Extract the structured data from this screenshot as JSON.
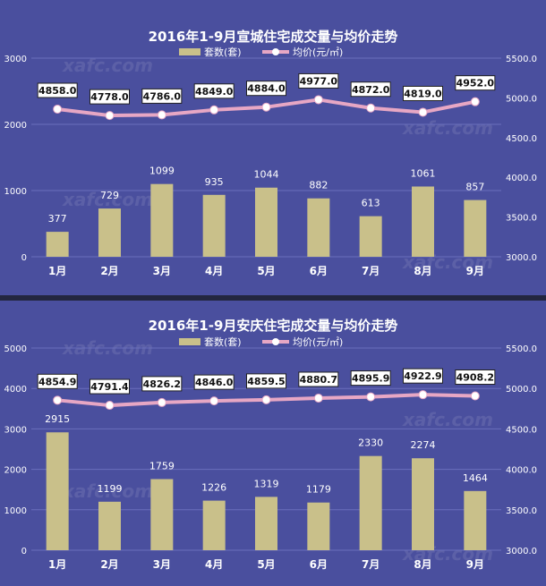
{
  "watermark": "xafc.com",
  "colors": {
    "background": "#4a4f9e",
    "bar": "#c9c08a",
    "line": "#e7a7c4",
    "marker": "#ffffff"
  },
  "chart_data": [
    {
      "type": "bar",
      "title": "2016年1-9月宣城住宅成交量与均价走势",
      "categories": [
        "1月",
        "2月",
        "3月",
        "4月",
        "5月",
        "6月",
        "7月",
        "8月",
        "9月"
      ],
      "series": [
        {
          "name": "套数(套)",
          "axis": "left",
          "values": [
            377,
            729,
            1099,
            935,
            1044,
            882,
            613,
            1061,
            857
          ]
        },
        {
          "name": "均价(元/㎡)",
          "axis": "right",
          "type": "line",
          "values": [
            4858.0,
            4778.0,
            4786.0,
            4849.0,
            4884.0,
            4977.0,
            4872.0,
            4819.0,
            4952.0
          ]
        }
      ],
      "ylim": [
        0,
        3000
      ],
      "yticks": [
        0,
        1000,
        2000,
        3000
      ],
      "y2lim": [
        3000,
        5500
      ],
      "y2ticks": [
        "3000.0",
        "3500.0",
        "4000.0",
        "4500.0",
        "5000.0",
        "5500.0"
      ],
      "legend": "top"
    },
    {
      "type": "bar",
      "title": "2016年1-9月安庆住宅成交量与均价走势",
      "categories": [
        "1月",
        "2月",
        "3月",
        "4月",
        "5月",
        "6月",
        "7月",
        "8月",
        "9月"
      ],
      "series": [
        {
          "name": "套数(套)",
          "axis": "left",
          "values": [
            2915,
            1199,
            1759,
            1226,
            1319,
            1179,
            2330,
            2274,
            1464
          ]
        },
        {
          "name": "均价(元/㎡)",
          "axis": "right",
          "type": "line",
          "values": [
            4854.9,
            4791.4,
            4826.2,
            4846.0,
            4859.5,
            4880.7,
            4895.9,
            4922.9,
            4908.2
          ]
        }
      ],
      "ylim": [
        0,
        5000
      ],
      "yticks": [
        0,
        1000,
        2000,
        3000,
        4000,
        5000
      ],
      "y2lim": [
        3000,
        5500
      ],
      "y2ticks": [
        "3000.0",
        "3500.0",
        "4000.0",
        "4500.0",
        "5000.0",
        "5500.0"
      ],
      "legend": "top"
    }
  ]
}
